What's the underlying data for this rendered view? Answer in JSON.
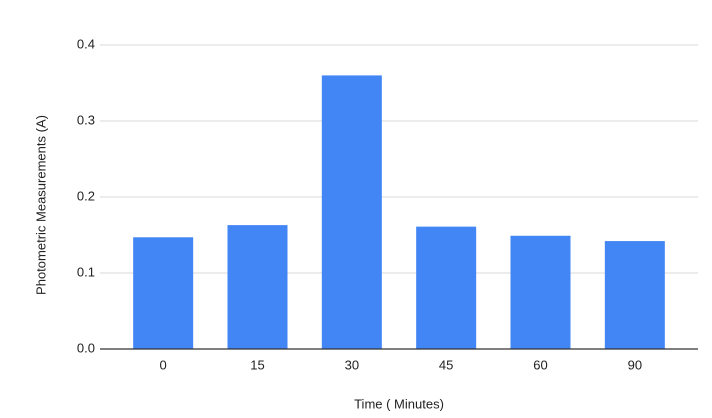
{
  "chart_data": {
    "type": "bar",
    "x_label": "Time ( Minutes)",
    "y_label": "Photometric Measurements (A)",
    "categories": [
      "0",
      "15",
      "30",
      "45",
      "60",
      "90"
    ],
    "values": [
      0.147,
      0.163,
      0.36,
      0.161,
      0.149,
      0.142
    ],
    "color": "#4285f4",
    "ylim": [
      0,
      0.4
    ],
    "yticks": [
      {
        "value": 0,
        "label": "0.0"
      },
      {
        "value": 0.1,
        "label": "0.1"
      },
      {
        "value": 0.2,
        "label": "0.2"
      },
      {
        "value": 0.3,
        "label": "0.3"
      },
      {
        "value": 0.4,
        "label": "0.4"
      }
    ],
    "grid": true
  }
}
